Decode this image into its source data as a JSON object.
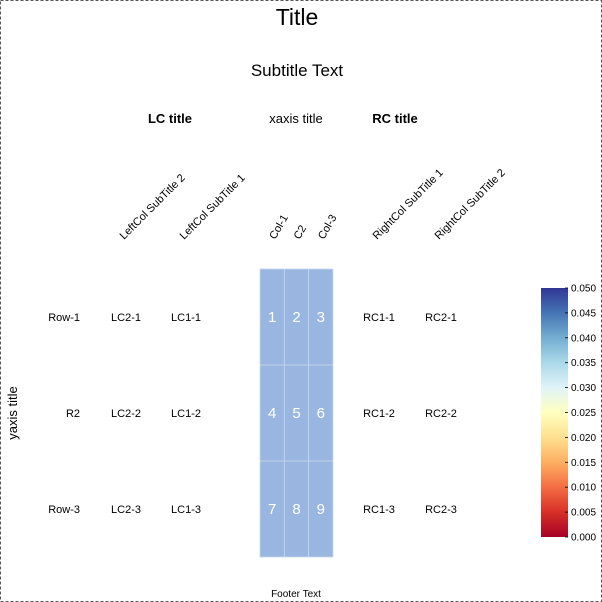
{
  "chart_data": {
    "type": "heatmap",
    "title": "Title",
    "subtitle": "Subtitle Text",
    "xlabel": "xaxis title",
    "ylabel": "yaxis title",
    "footer": "Footer Text",
    "left_col_title": "LC title",
    "right_col_title": "RC title",
    "columns": [
      "Col-1",
      "C2",
      "Col-3"
    ],
    "rows": [
      "Row-1",
      "R2",
      "Row-3"
    ],
    "values": [
      [
        1,
        2,
        3
      ],
      [
        4,
        5,
        6
      ],
      [
        7,
        8,
        9
      ]
    ],
    "cell_color": "#98b6e0",
    "left_columns": [
      {
        "header": "LeftCol SubTitle 2",
        "values": [
          "LC2-1",
          "LC2-2",
          "LC2-3"
        ]
      },
      {
        "header": "LeftCol SubTitle 1",
        "values": [
          "LC1-1",
          "LC1-2",
          "LC1-3"
        ]
      }
    ],
    "right_columns": [
      {
        "header": "RightCol SubTitle 1",
        "values": [
          "RC1-1",
          "RC1-2",
          "RC1-3"
        ]
      },
      {
        "header": "RightCol SubTitle 2",
        "values": [
          "RC2-1",
          "RC2-2",
          "RC2-3"
        ]
      }
    ],
    "legend": {
      "ticks": [
        "0.000",
        "0.005",
        "0.010",
        "0.015",
        "0.020",
        "0.025",
        "0.030",
        "0.035",
        "0.040",
        "0.045",
        "0.050"
      ],
      "range": [
        0,
        0.05
      ],
      "colors": [
        "#a50026",
        "#d73027",
        "#f46d43",
        "#fdae61",
        "#fee090",
        "#ffffbf",
        "#e0f3f8",
        "#abd9e9",
        "#74add1",
        "#4575b4",
        "#313695"
      ]
    }
  }
}
